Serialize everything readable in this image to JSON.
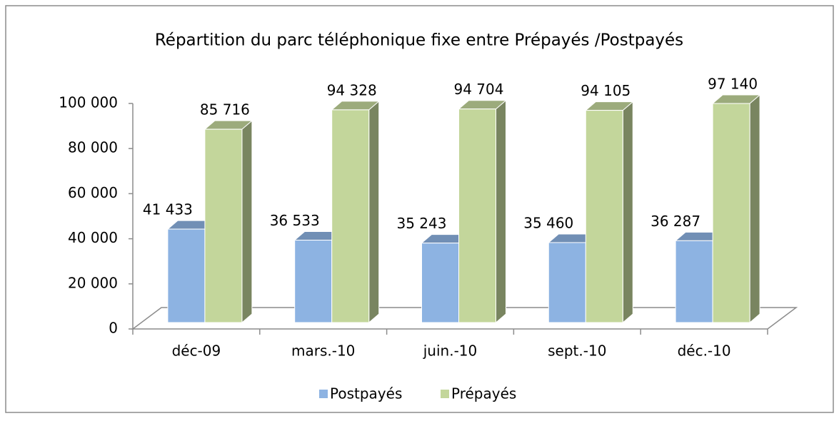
{
  "chart_data": {
    "type": "bar3d",
    "title": "Répartition du parc téléphonique fixe entre Prépayés /Postpayés",
    "categories": [
      "déc-09",
      "mars.-10",
      "juin.-10",
      "sept.-10",
      "déc.-10"
    ],
    "series": [
      {
        "name": "Postpayés",
        "color": "#8db3e2",
        "values": [
          41433,
          36533,
          35243,
          35460,
          36287
        ],
        "value_labels": [
          "41 433",
          "36 533",
          "35 243",
          "35 460",
          "36 287"
        ]
      },
      {
        "name": "Prépayés",
        "color": "#c3d69b",
        "values": [
          85716,
          94328,
          94704,
          94105,
          97140
        ],
        "value_labels": [
          "85 716",
          "94 328",
          "94 704",
          "94 105",
          "97 140"
        ]
      }
    ],
    "ylim": [
      0,
      100000
    ],
    "yticks": [
      0,
      {
        "value": 20000,
        "label": "20 000"
      },
      {
        "value": 40000,
        "label": "40 000"
      },
      {
        "value": 60000,
        "label": "60 000"
      },
      {
        "value": 80000,
        "label": "80 000"
      },
      {
        "value": 100000,
        "label": "100 000"
      }
    ],
    "legend": "bottom"
  }
}
